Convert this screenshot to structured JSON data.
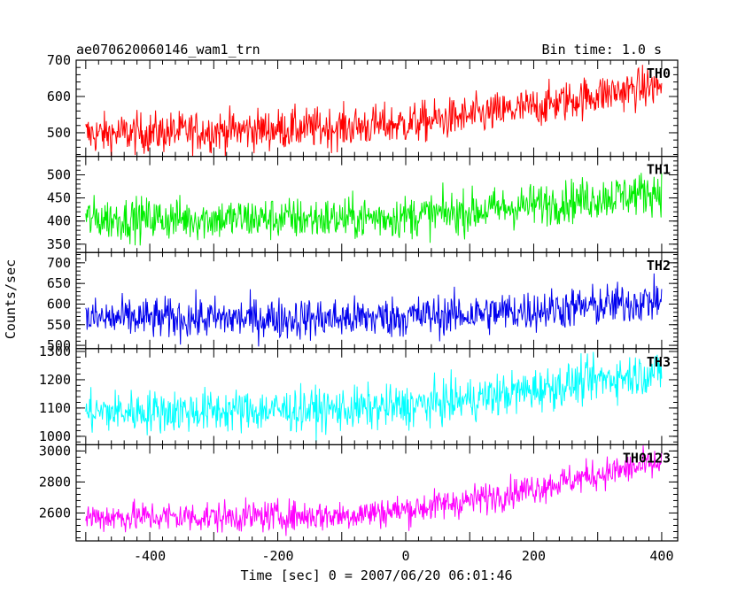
{
  "header": {
    "title": "ae070620060146_wam1_trn",
    "bin_time": "Bin time: 1.0 s"
  },
  "chart_data": {
    "type": "line",
    "xlabel": "Time [sec] 0 = 2007/06/20 06:01:46",
    "ylabel": "Counts/sec",
    "xlim": [
      -515,
      425
    ],
    "x_ticks": [
      -400,
      -200,
      0,
      200,
      400
    ],
    "x_range_data": [
      -500,
      400
    ],
    "bin_time_s": 1.0,
    "panels": [
      {
        "name": "TH0",
        "color": "#ff0000",
        "ylim": [
          435,
          700
        ],
        "y_ticks": [
          500,
          600,
          700
        ],
        "trend": [
          [
            -500,
            495
          ],
          [
            -300,
            505
          ],
          [
            -100,
            515
          ],
          [
            0,
            525
          ],
          [
            100,
            545
          ],
          [
            200,
            570
          ],
          [
            300,
            605
          ],
          [
            400,
            630
          ]
        ],
        "noise": 28
      },
      {
        "name": "TH1",
        "color": "#00ee00",
        "ylim": [
          332,
          540
        ],
        "y_ticks": [
          350,
          400,
          450,
          500
        ],
        "trend": [
          [
            -500,
            405
          ],
          [
            -300,
            405
          ],
          [
            -100,
            405
          ],
          [
            0,
            410
          ],
          [
            100,
            420
          ],
          [
            200,
            435
          ],
          [
            300,
            450
          ],
          [
            400,
            465
          ]
        ],
        "noise": 23
      },
      {
        "name": "TH2",
        "color": "#0000ee",
        "ylim": [
          492,
          725
        ],
        "y_ticks": [
          500,
          550,
          600,
          650,
          700
        ],
        "trend": [
          [
            -500,
            565
          ],
          [
            -300,
            565
          ],
          [
            -100,
            565
          ],
          [
            0,
            570
          ],
          [
            100,
            575
          ],
          [
            200,
            585
          ],
          [
            300,
            595
          ],
          [
            400,
            610
          ]
        ],
        "noise": 25
      },
      {
        "name": "TH3",
        "color": "#00ffff",
        "ylim": [
          970,
          1310
        ],
        "y_ticks": [
          1000,
          1100,
          1200,
          1300
        ],
        "trend": [
          [
            -500,
            1085
          ],
          [
            -300,
            1090
          ],
          [
            -100,
            1095
          ],
          [
            0,
            1105
          ],
          [
            100,
            1130
          ],
          [
            200,
            1165
          ],
          [
            300,
            1200
          ],
          [
            400,
            1230
          ]
        ],
        "noise": 38
      },
      {
        "name": "TH0123",
        "color": "#ff00ff",
        "ylim": [
          2420,
          3040
        ],
        "y_ticks": [
          2600,
          2800,
          3000
        ],
        "trend": [
          [
            -500,
            2575
          ],
          [
            -300,
            2575
          ],
          [
            -100,
            2585
          ],
          [
            0,
            2620
          ],
          [
            100,
            2680
          ],
          [
            200,
            2760
          ],
          [
            300,
            2850
          ],
          [
            400,
            2920
          ]
        ],
        "noise": 50
      }
    ]
  }
}
